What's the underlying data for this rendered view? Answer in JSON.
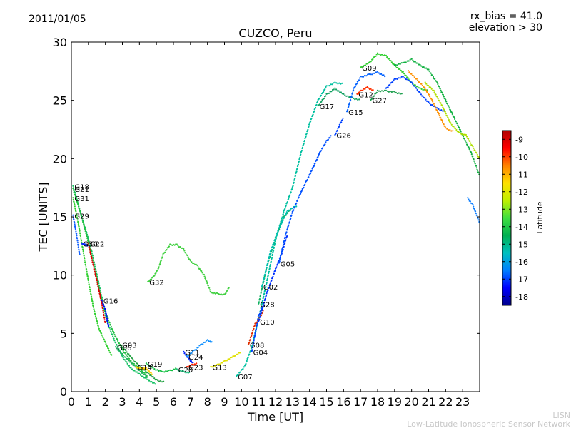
{
  "header": {
    "date": "2011/01/05",
    "rx_bias": "rx_bias = 41.0",
    "elevation": "elevation > 30"
  },
  "credit": {
    "line1": "LISN",
    "line2": "Low-Latitude Ionospheric Sensor Network"
  },
  "chart_data": {
    "type": "scatter",
    "title": "CUZCO, Peru",
    "xlabel": "Time [UT]",
    "ylabel": "TEC [UNITS]",
    "xlim": [
      0,
      24
    ],
    "ylim": [
      0,
      30
    ],
    "xticks": [
      "0",
      "1",
      "2",
      "3",
      "4",
      "5",
      "6",
      "7",
      "8",
      "9",
      "10",
      "11",
      "12",
      "13",
      "14",
      "15",
      "16",
      "17",
      "18",
      "19",
      "20",
      "21",
      "22",
      "23"
    ],
    "yticks": [
      "0",
      "5",
      "10",
      "15",
      "20",
      "25",
      "30"
    ],
    "colorbar": {
      "label": "Latitude",
      "range": [
        -18.5,
        -8.5
      ],
      "ticks": [
        "-9",
        "-10",
        "-11",
        "-12",
        "-13",
        "-14",
        "-15",
        "-16",
        "-17",
        "-18"
      ],
      "colors": [
        "#00008b",
        "#0000ff",
        "#0080ff",
        "#00c0c0",
        "#00b050",
        "#40e040",
        "#c0f000",
        "#ffe000",
        "#ff8000",
        "#ff0000",
        "#b00000"
      ]
    },
    "series": [
      {
        "name": "G18",
        "color": "#10c060",
        "points": [
          [
            0.1,
            17.6
          ],
          [
            0.3,
            16.6
          ],
          [
            0.6,
            15.0
          ],
          [
            0.9,
            13.6
          ],
          [
            1.2,
            12.0
          ],
          [
            1.5,
            10.0
          ],
          [
            1.8,
            8.0
          ],
          [
            2.1,
            6.0
          ],
          [
            2.5,
            4.5
          ],
          [
            3.0,
            3.0
          ],
          [
            3.5,
            2.0
          ],
          [
            4.0,
            1.5
          ],
          [
            4.5,
            1.0
          ],
          [
            5.0,
            0.6
          ]
        ]
      },
      {
        "name": "G21",
        "color": "#20c040",
        "points": [
          [
            0.1,
            17.4
          ],
          [
            0.4,
            16.0
          ],
          [
            0.7,
            14.5
          ],
          [
            1.0,
            12.8
          ],
          [
            1.3,
            11.0
          ],
          [
            1.6,
            9.0
          ],
          [
            2.0,
            6.8
          ],
          [
            2.5,
            5.0
          ],
          [
            3.0,
            3.6
          ],
          [
            3.5,
            2.6
          ],
          [
            4.0,
            2.0
          ],
          [
            4.5,
            1.3
          ]
        ]
      },
      {
        "name": "G31",
        "color": "#30d030",
        "points": [
          [
            0.1,
            16.6
          ],
          [
            0.4,
            14.5
          ],
          [
            0.7,
            12.0
          ],
          [
            1.0,
            9.5
          ],
          [
            1.3,
            7.2
          ],
          [
            1.6,
            5.5
          ],
          [
            2.0,
            4.2
          ],
          [
            2.4,
            3.0
          ]
        ]
      },
      {
        "name": "G29",
        "color": "#1060ff",
        "points": [
          [
            0.1,
            15.1
          ],
          [
            0.3,
            13.5
          ],
          [
            0.5,
            11.6
          ]
        ]
      },
      {
        "name": "G30",
        "color": "#1030ff",
        "points": [
          [
            0.6,
            12.7
          ],
          [
            0.8,
            12.6
          ],
          [
            1.0,
            12.5
          ]
        ]
      },
      {
        "name": "G22",
        "color": "#e00000",
        "points": [
          [
            1.0,
            12.7
          ],
          [
            1.2,
            11.4
          ],
          [
            1.5,
            9.5
          ],
          [
            1.8,
            7.5
          ],
          [
            2.0,
            5.8
          ]
        ]
      },
      {
        "name": "G16",
        "color": "#0000ff",
        "points": [
          [
            1.8,
            7.8
          ],
          [
            2.0,
            7.0
          ],
          [
            2.2,
            5.5
          ]
        ]
      },
      {
        "name": "G03",
        "color": "#20a040",
        "points": [
          [
            2.9,
            4.0
          ],
          [
            3.2,
            3.5
          ],
          [
            3.6,
            2.8
          ],
          [
            4.0,
            2.2
          ],
          [
            4.5,
            1.6
          ],
          [
            5.0,
            1.0
          ],
          [
            5.5,
            0.8
          ]
        ]
      },
      {
        "name": "G06",
        "color": "#20b060",
        "points": [
          [
            2.6,
            3.8
          ],
          [
            3.0,
            3.2
          ],
          [
            3.5,
            2.5
          ],
          [
            4.0,
            1.8
          ],
          [
            4.5,
            1.2
          ]
        ]
      },
      {
        "name": "G14",
        "color": "#ffd000",
        "points": [
          [
            3.8,
            2.1
          ],
          [
            4.1,
            2.0
          ],
          [
            4.4,
            2.0
          ],
          [
            4.8,
            1.4
          ]
        ]
      },
      {
        "name": "G19",
        "color": "#10c040",
        "points": [
          [
            4.4,
            2.4
          ],
          [
            4.8,
            2.0
          ],
          [
            5.3,
            1.7
          ],
          [
            5.8,
            1.8
          ],
          [
            6.2,
            2.0
          ]
        ]
      },
      {
        "name": "G32",
        "color": "#40d040",
        "points": [
          [
            4.5,
            9.4
          ],
          [
            4.8,
            9.8
          ],
          [
            5.1,
            10.5
          ],
          [
            5.4,
            11.8
          ],
          [
            5.8,
            12.6
          ],
          [
            6.2,
            12.6
          ],
          [
            6.6,
            12.2
          ],
          [
            7.0,
            11.2
          ],
          [
            7.4,
            10.8
          ],
          [
            7.8,
            10.0
          ],
          [
            8.2,
            8.5
          ],
          [
            8.6,
            8.4
          ],
          [
            9.0,
            8.3
          ],
          [
            9.3,
            9.0
          ]
        ]
      },
      {
        "name": "G11",
        "color": "#0020ff",
        "points": [
          [
            6.6,
            3.4
          ],
          [
            6.9,
            2.8
          ],
          [
            7.2,
            2.4
          ]
        ]
      },
      {
        "name": "G24",
        "color": "#1090ff",
        "points": [
          [
            6.8,
            3.0
          ],
          [
            7.2,
            3.5
          ],
          [
            7.6,
            4.0
          ],
          [
            8.0,
            4.4
          ],
          [
            8.3,
            4.2
          ]
        ]
      },
      {
        "name": "G20",
        "color": "#20c080",
        "points": [
          [
            6.2,
            1.9
          ],
          [
            6.6,
            1.7
          ],
          [
            7.0,
            1.6
          ]
        ]
      },
      {
        "name": "G23",
        "color": "#ff2000",
        "points": [
          [
            6.8,
            2.1
          ],
          [
            7.1,
            2.3
          ],
          [
            7.4,
            2.4
          ]
        ]
      },
      {
        "name": "G13",
        "color": "#e0e000",
        "points": [
          [
            8.2,
            2.1
          ],
          [
            8.6,
            2.3
          ],
          [
            9.0,
            2.6
          ],
          [
            9.5,
            3.0
          ],
          [
            10.0,
            3.4
          ]
        ]
      },
      {
        "name": "G07",
        "color": "#00c0a0",
        "points": [
          [
            9.7,
            1.3
          ],
          [
            10.2,
            2.2
          ],
          [
            10.6,
            3.8
          ],
          [
            11.0,
            6.2
          ],
          [
            11.5,
            9.5
          ],
          [
            12.0,
            13.0
          ],
          [
            12.5,
            15.5
          ],
          [
            13.0,
            17.5
          ],
          [
            13.5,
            20.5
          ],
          [
            14.0,
            23.0
          ],
          [
            14.5,
            25.0
          ],
          [
            15.0,
            26.2
          ],
          [
            15.5,
            26.5
          ],
          [
            16.0,
            26.4
          ]
        ]
      },
      {
        "name": "G04",
        "color": "#0040ff",
        "points": [
          [
            10.6,
            3.4
          ],
          [
            11.0,
            6.5
          ],
          [
            11.3,
            7.4
          ]
        ]
      },
      {
        "name": "G08",
        "color": "#e03000",
        "points": [
          [
            10.4,
            4.0
          ],
          [
            10.8,
            5.8
          ],
          [
            11.1,
            6.4
          ],
          [
            11.3,
            7.0
          ]
        ]
      },
      {
        "name": "G10",
        "color": "#0030ff",
        "points": [
          [
            11.0,
            6.0
          ],
          [
            11.5,
            8.5
          ],
          [
            12.0,
            10.5
          ],
          [
            12.4,
            12.0
          ],
          [
            12.7,
            13.5
          ]
        ]
      },
      {
        "name": "G28",
        "color": "#10b060",
        "points": [
          [
            11.0,
            7.5
          ],
          [
            11.5,
            10.8
          ],
          [
            12.0,
            13.2
          ],
          [
            12.5,
            15.0
          ],
          [
            13.0,
            15.8
          ]
        ]
      },
      {
        "name": "G02",
        "color": "#00c0b0",
        "points": [
          [
            11.2,
            9.0
          ],
          [
            11.7,
            12.0
          ],
          [
            12.2,
            14.0
          ],
          [
            12.7,
            15.5
          ],
          [
            13.3,
            16.0
          ]
        ]
      },
      {
        "name": "G05",
        "color": "#0050ff",
        "points": [
          [
            12.2,
            11.0
          ],
          [
            12.6,
            13.5
          ],
          [
            13.0,
            15.4
          ],
          [
            13.4,
            16.8
          ],
          [
            13.8,
            18.0
          ],
          [
            14.2,
            19.2
          ],
          [
            14.6,
            20.5
          ],
          [
            15.0,
            21.5
          ],
          [
            15.3,
            22.0
          ]
        ]
      },
      {
        "name": "G26",
        "color": "#0040ff",
        "points": [
          [
            15.5,
            22.0
          ],
          [
            15.8,
            23.0
          ],
          [
            16.0,
            23.5
          ]
        ]
      },
      {
        "name": "G17",
        "color": "#10a060",
        "points": [
          [
            14.5,
            24.5
          ],
          [
            15.0,
            25.5
          ],
          [
            15.5,
            26.0
          ],
          [
            16.0,
            25.5
          ],
          [
            16.5,
            25.2
          ],
          [
            17.0,
            25.0
          ]
        ]
      },
      {
        "name": "G15",
        "color": "#0060ff",
        "points": [
          [
            16.2,
            24.0
          ],
          [
            16.6,
            26.0
          ],
          [
            17.0,
            27.0
          ],
          [
            17.5,
            27.2
          ],
          [
            18.0,
            27.4
          ],
          [
            18.5,
            27.0
          ]
        ]
      },
      {
        "name": "G12",
        "color": "#ff3000",
        "points": [
          [
            16.8,
            25.5
          ],
          [
            17.0,
            25.8
          ],
          [
            17.4,
            26.1
          ],
          [
            17.8,
            25.8
          ]
        ]
      },
      {
        "name": "G27",
        "color": "#20a050",
        "points": [
          [
            17.6,
            25.0
          ],
          [
            18.0,
            25.8
          ],
          [
            18.5,
            25.8
          ],
          [
            19.0,
            25.7
          ],
          [
            19.5,
            25.5
          ]
        ]
      },
      {
        "name": "G09",
        "color": "#30d030",
        "points": [
          [
            17.0,
            27.8
          ],
          [
            17.5,
            28.2
          ],
          [
            18.0,
            29.0
          ],
          [
            18.5,
            28.8
          ],
          [
            19.0,
            28.0
          ],
          [
            19.5,
            27.4
          ],
          [
            20.0,
            26.5
          ],
          [
            20.5,
            26.0
          ],
          [
            21.0,
            25.8
          ]
        ]
      },
      {
        "name": "",
        "color": "#0040ff",
        "points": [
          [
            18.5,
            26.0
          ],
          [
            19.0,
            26.8
          ],
          [
            19.5,
            27.0
          ],
          [
            20.0,
            26.5
          ],
          [
            20.5,
            25.6
          ],
          [
            21.0,
            24.8
          ],
          [
            21.5,
            24.3
          ],
          [
            22.0,
            24.0
          ]
        ]
      },
      {
        "name": "",
        "color": "#10b040",
        "points": [
          [
            19.0,
            28.0
          ],
          [
            19.5,
            28.2
          ],
          [
            20.0,
            28.5
          ],
          [
            20.5,
            28.0
          ],
          [
            21.0,
            27.6
          ],
          [
            21.5,
            26.5
          ],
          [
            22.0,
            25.0
          ],
          [
            22.5,
            23.5
          ],
          [
            23.0,
            22.0
          ],
          [
            23.5,
            20.5
          ],
          [
            24.0,
            18.5
          ]
        ]
      },
      {
        "name": "",
        "color": "#ff9000",
        "points": [
          [
            19.8,
            27.5
          ],
          [
            20.3,
            26.8
          ],
          [
            20.8,
            26.0
          ],
          [
            21.2,
            25.0
          ],
          [
            21.6,
            23.8
          ],
          [
            22.0,
            22.6
          ],
          [
            22.5,
            22.3
          ]
        ]
      },
      {
        "name": "",
        "color": "#b0e000",
        "points": [
          [
            20.8,
            26.5
          ],
          [
            21.3,
            25.8
          ],
          [
            21.8,
            24.5
          ],
          [
            22.3,
            23.0
          ],
          [
            22.8,
            22.2
          ],
          [
            23.2,
            22.0
          ],
          [
            23.6,
            21.0
          ],
          [
            24.0,
            20.0
          ]
        ]
      },
      {
        "name": "",
        "color": "#1080ff",
        "points": [
          [
            23.3,
            16.6
          ],
          [
            23.6,
            16.0
          ],
          [
            24.0,
            14.5
          ]
        ]
      }
    ]
  }
}
